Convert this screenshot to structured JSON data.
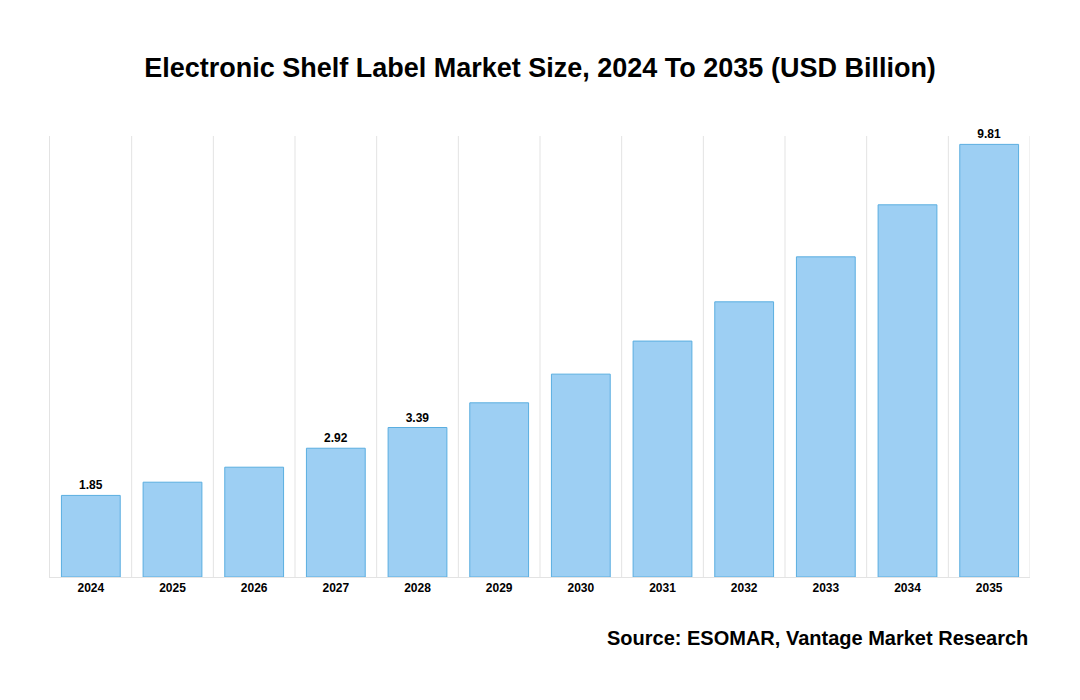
{
  "chart_data": {
    "type": "bar",
    "title": "Electronic Shelf Label Market Size, 2024 To 2035 (USD Billion)",
    "categories": [
      "2024",
      "2025",
      "2026",
      "2027",
      "2028",
      "2029",
      "2030",
      "2031",
      "2032",
      "2033",
      "2034",
      "2035"
    ],
    "values": [
      1.85,
      2.15,
      2.49,
      2.92,
      3.39,
      3.95,
      4.6,
      5.35,
      6.24,
      7.26,
      8.44,
      9.81
    ],
    "value_labels": [
      "1.85",
      null,
      null,
      "2.92",
      "3.39",
      null,
      null,
      null,
      null,
      null,
      null,
      "9.81"
    ],
    "data_labels": true,
    "color": "#9dcff3",
    "ylim": [
      0,
      10
    ],
    "yticks": [],
    "grid": true,
    "tick_labels": "x",
    "source": "Source: ESOMAR, Vantage Market Research"
  }
}
